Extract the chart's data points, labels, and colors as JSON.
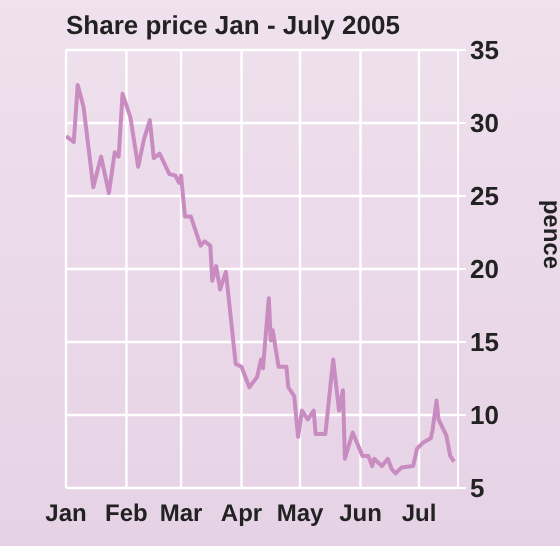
{
  "chart_data": {
    "type": "line",
    "title": "Share price Jan - July 2005",
    "ylabel": "pence",
    "x": [
      "2005-01-01",
      "2005-01-05",
      "2005-01-07",
      "2005-01-10",
      "2005-01-15",
      "2005-01-19",
      "2005-01-23",
      "2005-01-26",
      "2005-01-28",
      "2005-01-30",
      "2005-02-03",
      "2005-02-07",
      "2005-02-10",
      "2005-02-13",
      "2005-02-15",
      "2005-02-18",
      "2005-02-23",
      "2005-02-26",
      "2005-02-28",
      "2005-03-01",
      "2005-03-03",
      "2005-03-06",
      "2005-03-11",
      "2005-03-13",
      "2005-03-16",
      "2005-03-17",
      "2005-03-19",
      "2005-03-21",
      "2005-03-24",
      "2005-03-29",
      "2005-04-01",
      "2005-04-05",
      "2005-04-09",
      "2005-04-11",
      "2005-04-12",
      "2005-04-15",
      "2005-04-16",
      "2005-04-17",
      "2005-04-20",
      "2005-04-24",
      "2005-04-25",
      "2005-04-28",
      "2005-04-30",
      "2005-05-02",
      "2005-05-05",
      "2005-05-08",
      "2005-05-09",
      "2005-05-14",
      "2005-05-18",
      "2005-05-21",
      "2005-05-23",
      "2005-05-24",
      "2005-05-28",
      "2005-06-02",
      "2005-06-05",
      "2005-06-07",
      "2005-06-08",
      "2005-06-12",
      "2005-06-15",
      "2005-06-17",
      "2005-06-19",
      "2005-06-22",
      "2005-06-28",
      "2005-06-30",
      "2005-07-03",
      "2005-07-07",
      "2005-07-08",
      "2005-07-10",
      "2005-07-11",
      "2005-07-15",
      "2005-07-17",
      "2005-07-19"
    ],
    "series": [
      {
        "color": "#c98cc0",
        "values": [
          29.1,
          28.7,
          32.6,
          31.1,
          25.6,
          27.7,
          25.2,
          28.0,
          27.7,
          32.0,
          30.4,
          27.0,
          28.9,
          30.2,
          27.6,
          27.9,
          26.5,
          26.4,
          25.9,
          26.4,
          23.6,
          23.6,
          21.6,
          21.9,
          21.6,
          19.2,
          20.2,
          18.6,
          19.8,
          13.5,
          13.3,
          11.9,
          12.6,
          13.8,
          13.2,
          18.0,
          15.1,
          15.8,
          13.3,
          13.3,
          11.9,
          11.3,
          8.5,
          10.3,
          9.7,
          10.3,
          8.7,
          8.7,
          13.8,
          10.3,
          11.7,
          7.0,
          8.8,
          7.2,
          7.2,
          6.5,
          7.0,
          6.5,
          7.0,
          6.3,
          6.0,
          6.4,
          6.5,
          7.7,
          8.1,
          8.4,
          9.0,
          11.0,
          9.7,
          8.6,
          7.2,
          6.8
        ]
      }
    ],
    "xlim": [
      "2005-01-01",
      "2005-07-21"
    ],
    "xticks": [
      {
        "value": "2005-01-01",
        "label": "Jan"
      },
      {
        "value": "2005-02-01",
        "label": "Feb"
      },
      {
        "value": "2005-03-01",
        "label": "Mar"
      },
      {
        "value": "2005-04-01",
        "label": "Apr"
      },
      {
        "value": "2005-05-01",
        "label": "May"
      },
      {
        "value": "2005-06-01",
        "label": "Jun"
      },
      {
        "value": "2005-07-01",
        "label": "Jul"
      }
    ],
    "ylim": [
      5,
      35
    ],
    "yticks": [
      5,
      10,
      15,
      20,
      25,
      30,
      35
    ],
    "grid": true,
    "legend": false,
    "marker": "none",
    "line_style": "solid"
  }
}
